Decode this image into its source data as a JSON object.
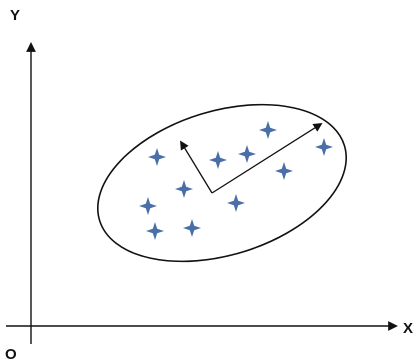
{
  "axes": {
    "x_label": "X",
    "y_label": "Y",
    "origin_label": "O"
  },
  "colors": {
    "axis": "#111111",
    "star": "#4a6fa8",
    "ellipse": "#111111",
    "vector": "#111111"
  },
  "icons": {
    "point_marker": "four-point-star-icon"
  }
}
